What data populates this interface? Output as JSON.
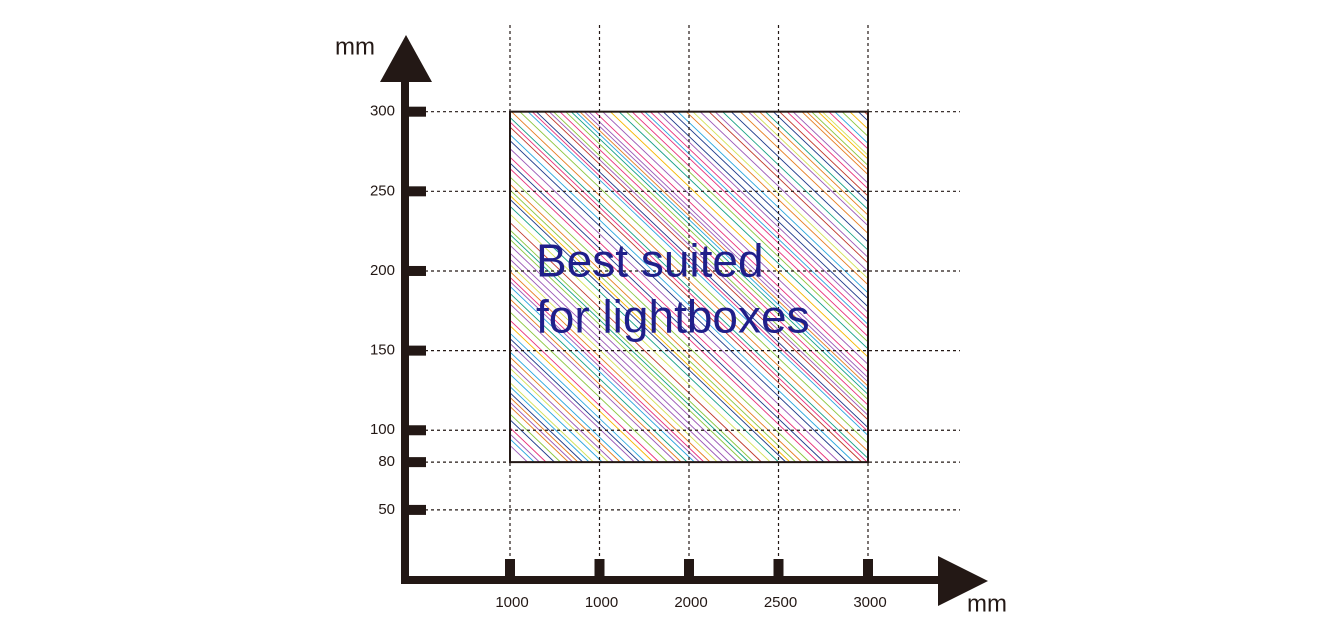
{
  "chart_data": {
    "type": "region",
    "y_label": "mm",
    "x_label": "mm",
    "categories": [
      "1000",
      "1000",
      "2000",
      "2500",
      "3000"
    ],
    "ylim": [
      6,
      345
    ],
    "yticks": [
      50,
      80,
      100,
      150,
      200,
      250,
      300
    ],
    "grid": true,
    "region": {
      "y_range": [
        80,
        300
      ],
      "lines": [
        "Best suited",
        "for lightboxes"
      ]
    }
  }
}
